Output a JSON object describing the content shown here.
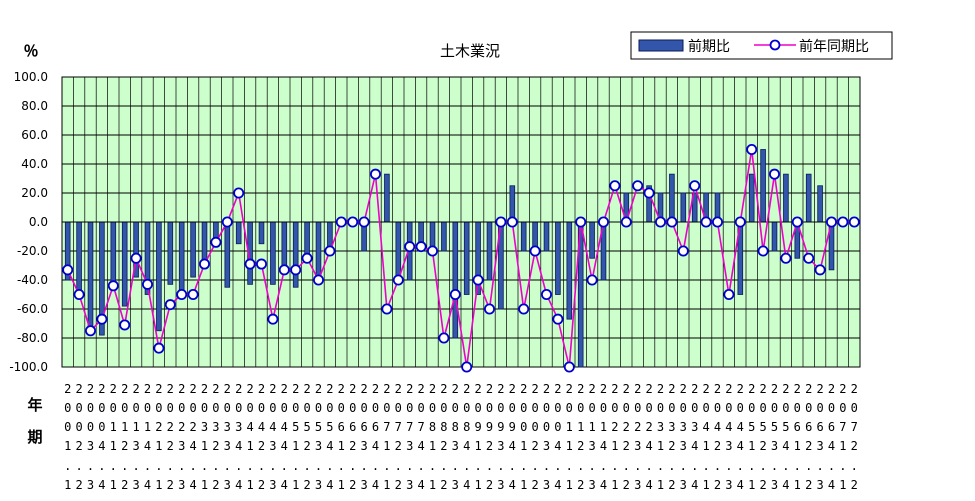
{
  "chart_data": {
    "type": "bar+line",
    "title": "土木業況",
    "ylabel": "％",
    "xlabel": [
      "年",
      "期"
    ],
    "ylim": [
      -100,
      100
    ],
    "ytick_step": 20,
    "yticks": [
      "100.0",
      "80.0",
      "60.0",
      "40.0",
      "20.0",
      "0.0",
      "-20.0",
      "-40.0",
      "-60.0",
      "-80.0",
      "-100.0"
    ],
    "legend": {
      "position": "top-right"
    },
    "colors": {
      "plot_bg": "#ccffcc",
      "bar_fill": "#3355aa",
      "bar_edge": "#0a1a5a",
      "line": "#ee00cc",
      "marker_edge": "#0000cc",
      "marker_fill": "#ffffff",
      "grid": "#000000"
    },
    "x": [
      "2002.1",
      "2002.2",
      "2002.3",
      "2002.4",
      "2003.1",
      "2003.2",
      "2003.3",
      "2003.4",
      "2004.1",
      "2004.2",
      "2004.3",
      "2004.4",
      "2005.1",
      "2005.2",
      "2005.3",
      "2005.4",
      "2006.1",
      "2006.2",
      "2006.3",
      "2006.4",
      "2007.1",
      "2007.2",
      "2007.3",
      "2007.4",
      "2008.1",
      "2008.2",
      "2008.3",
      "2008.4",
      "2009.1",
      "2009.2",
      "2009.3",
      "2009.4",
      "2010.1",
      "2010.2",
      "2010.3",
      "2010.4",
      "2011.1",
      "2011.2",
      "2011.3",
      "2011.4",
      "2012.1",
      "2012.2",
      "2012.3",
      "2012.4",
      "2013.1",
      "2013.2",
      "2013.3",
      "2013.4",
      "2014.1",
      "2014.2",
      "2014.3",
      "2014.4",
      "2015.1",
      "2015.2",
      "2015.3",
      "2015.4",
      "2016.1",
      "2016.2",
      "2016.3",
      "2016.4",
      "2017.1",
      "2017.2",
      "2017.3",
      "2017.4",
      "2018.1",
      "2018.2",
      "2018.3",
      "2018.4",
      "2019.1",
      "2019.2"
    ],
    "x_label_rows": [
      "2222222222222222222222222222222222222222222222222222222222222222222222",
      "0000000000000000000000000000000000000000000000000000000000000000000000",
      "0000111122223333444455556666777788889999000011112222333344445555666677",
      "1234123412341234123412341234123412341234123412341234123412341234123412",
      "......................................................................",
      "1234123412341234123412341234123412341234123412341234123412341234123412"
    ],
    "series": [
      {
        "name": "前期比",
        "kind": "bar",
        "values": [
          -40,
          -50,
          -78,
          -78,
          -44,
          -58,
          -38,
          -50,
          -75,
          -43,
          -50,
          -38,
          -30,
          -14,
          -45,
          -15,
          -43,
          -15,
          -43,
          -33,
          -45,
          -25,
          -40,
          -20,
          0,
          0,
          -20,
          0,
          33,
          -40,
          -40,
          -20,
          -17,
          -20,
          -80,
          -50,
          -50,
          -40,
          -60,
          25,
          -20,
          -20,
          -20,
          -50,
          -67,
          -100,
          -25,
          -40,
          0,
          20,
          0,
          25,
          20,
          33,
          20,
          20,
          20,
          20,
          0,
          -50,
          33,
          50,
          -20,
          33,
          -25,
          33,
          25,
          -33,
          0,
          0
        ]
      },
      {
        "name": "前年同期比",
        "kind": "line",
        "values": [
          -33,
          -50,
          -75,
          -67,
          -44,
          -71,
          -25,
          -43,
          -87,
          -57,
          -50,
          -50,
          -29,
          -14,
          0,
          20,
          -29,
          -29,
          -67,
          -33,
          -33,
          -25,
          -40,
          -20,
          0,
          0,
          0,
          33,
          -60,
          -40,
          -17,
          -17,
          -20,
          -80,
          -50,
          -100,
          -40,
          -60,
          0,
          0,
          -60,
          -20,
          -50,
          -67,
          -100,
          0,
          -40,
          0,
          25,
          0,
          25,
          20,
          0,
          0,
          -20,
          25,
          0,
          0,
          -50,
          0,
          50,
          -20,
          33,
          -25,
          0,
          -25,
          -33,
          0,
          0,
          0
        ]
      }
    ]
  }
}
